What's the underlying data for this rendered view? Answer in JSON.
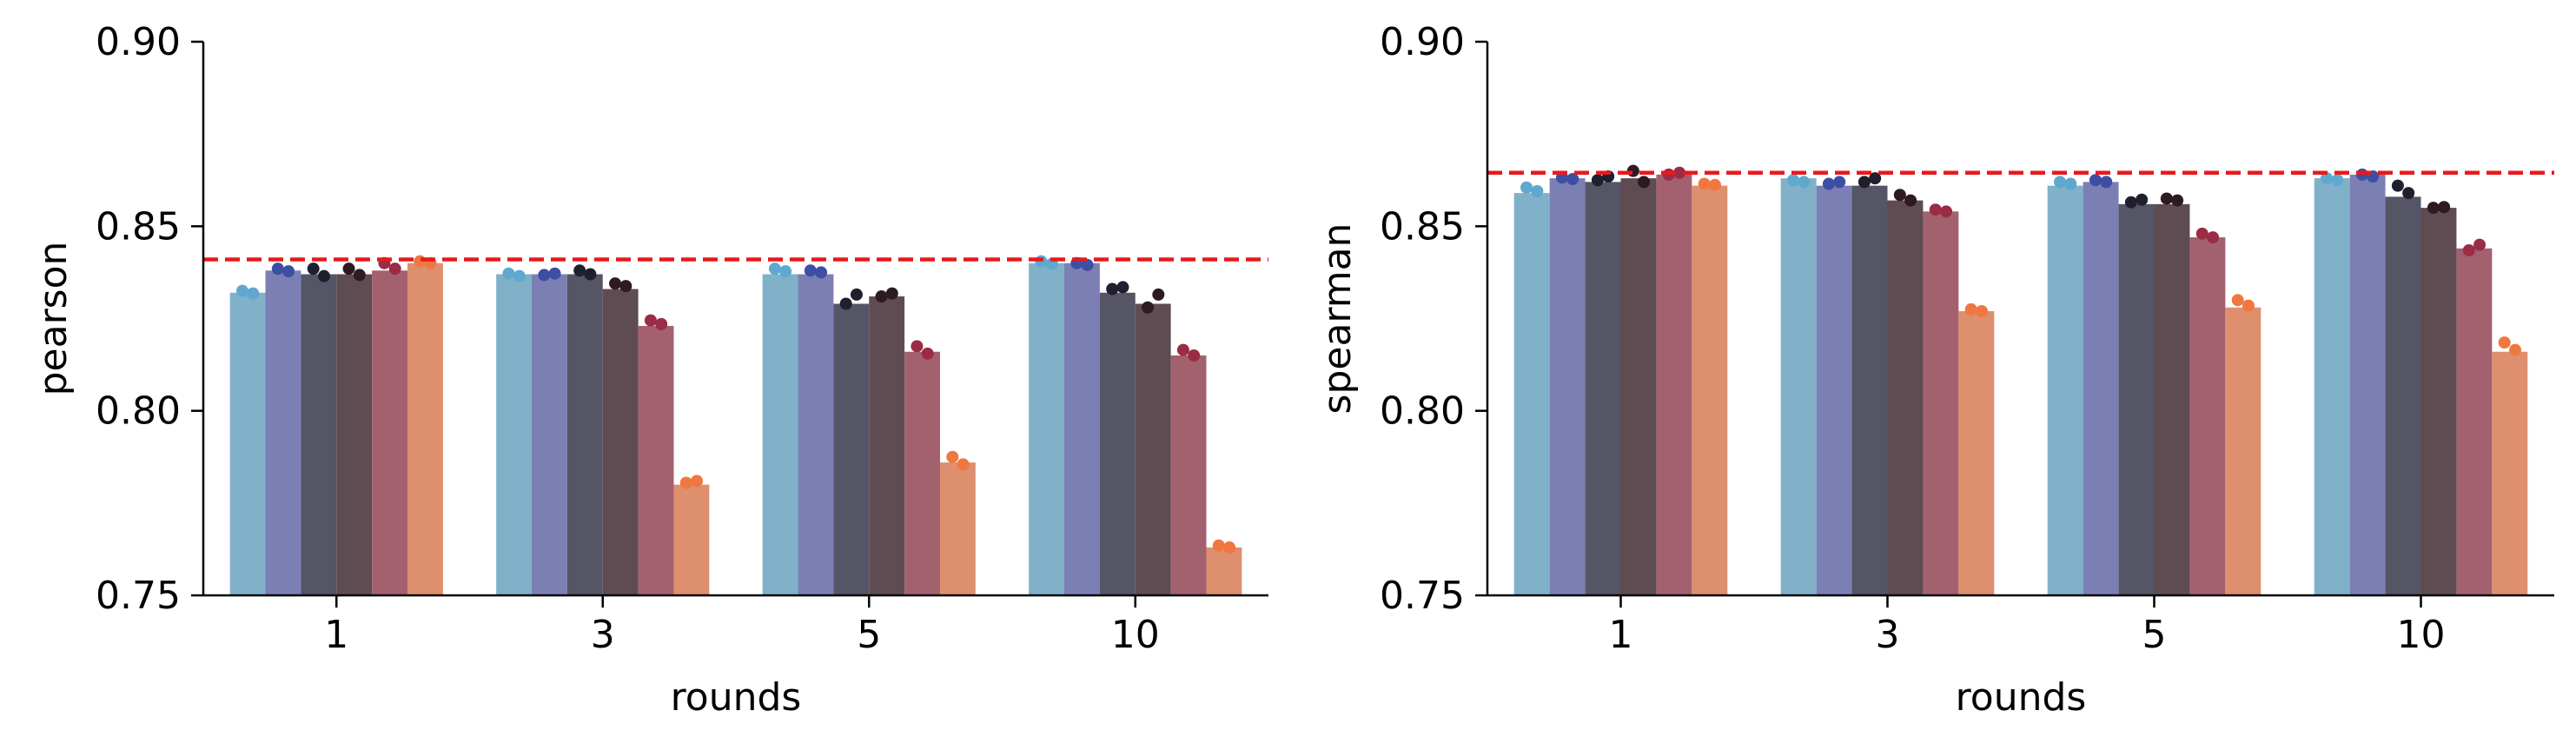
{
  "chart_data": [
    {
      "type": "bar",
      "xlabel": "rounds",
      "ylabel": "pearson",
      "ylim": [
        0.75,
        0.9
      ],
      "yticks": [
        "0.75",
        "0.80",
        "0.85",
        "0.90"
      ],
      "categories": [
        "1",
        "3",
        "5",
        "10"
      ],
      "reference_line": 0.841,
      "series": [
        {
          "values": [
            0.832,
            0.837,
            0.837,
            0.84
          ],
          "points": [
            [
              0.8325,
              0.8318
            ],
            [
              0.8372,
              0.8365
            ],
            [
              0.8385,
              0.8378
            ],
            [
              0.8405,
              0.8398
            ]
          ]
        },
        {
          "values": [
            0.838,
            0.837,
            0.837,
            0.84
          ],
          "points": [
            [
              0.8385,
              0.8378
            ],
            [
              0.8368,
              0.8372
            ],
            [
              0.838,
              0.8375
            ],
            [
              0.84,
              0.8395
            ]
          ]
        },
        {
          "values": [
            0.837,
            0.837,
            0.829,
            0.832
          ],
          "points": [
            [
              0.8385,
              0.8365
            ],
            [
              0.838,
              0.837
            ],
            [
              0.829,
              0.8315
            ],
            [
              0.833,
              0.8335
            ]
          ]
        },
        {
          "values": [
            0.837,
            0.833,
            0.831,
            0.829
          ],
          "points": [
            [
              0.8385,
              0.8368
            ],
            [
              0.8345,
              0.8338
            ],
            [
              0.831,
              0.8318
            ],
            [
              0.828,
              0.8315
            ]
          ]
        },
        {
          "values": [
            0.838,
            0.823,
            0.816,
            0.815
          ],
          "points": [
            [
              0.84,
              0.8385
            ],
            [
              0.8245,
              0.8235
            ],
            [
              0.8175,
              0.8155
            ],
            [
              0.8165,
              0.815
            ]
          ]
        },
        {
          "values": [
            0.84,
            0.78,
            0.786,
            0.763
          ],
          "points": [
            [
              0.8405,
              0.84
            ],
            [
              0.7805,
              0.781
            ],
            [
              0.7875,
              0.7855
            ],
            [
              0.7635,
              0.763
            ]
          ]
        }
      ]
    },
    {
      "type": "bar",
      "xlabel": "rounds",
      "ylabel": "spearman",
      "ylim": [
        0.75,
        0.9
      ],
      "yticks": [
        "0.75",
        "0.80",
        "0.85",
        "0.90"
      ],
      "categories": [
        "1",
        "3",
        "5",
        "10"
      ],
      "reference_line": 0.8645,
      "series": [
        {
          "values": [
            0.859,
            0.863,
            0.861,
            0.863
          ],
          "points": [
            [
              0.8605,
              0.8595
            ],
            [
              0.8625,
              0.862
            ],
            [
              0.862,
              0.8615
            ],
            [
              0.863,
              0.8625
            ]
          ]
        },
        {
          "values": [
            0.863,
            0.861,
            0.862,
            0.864
          ],
          "points": [
            [
              0.8632,
              0.8628
            ],
            [
              0.8615,
              0.862
            ],
            [
              0.8625,
              0.862
            ],
            [
              0.864,
              0.8635
            ]
          ]
        },
        {
          "values": [
            0.862,
            0.861,
            0.856,
            0.858
          ],
          "points": [
            [
              0.8625,
              0.8635
            ],
            [
              0.862,
              0.863
            ],
            [
              0.8565,
              0.8572
            ],
            [
              0.861,
              0.859
            ]
          ]
        },
        {
          "values": [
            0.863,
            0.857,
            0.856,
            0.855
          ],
          "points": [
            [
              0.865,
              0.862
            ],
            [
              0.8585,
              0.857
            ],
            [
              0.8575,
              0.857
            ],
            [
              0.855,
              0.8552
            ]
          ]
        },
        {
          "values": [
            0.864,
            0.854,
            0.847,
            0.844
          ],
          "points": [
            [
              0.864,
              0.8645
            ],
            [
              0.8545,
              0.854
            ],
            [
              0.848,
              0.847
            ],
            [
              0.8435,
              0.845
            ]
          ]
        },
        {
          "values": [
            0.861,
            0.827,
            0.828,
            0.816
          ],
          "points": [
            [
              0.8615,
              0.8612
            ],
            [
              0.8275,
              0.827
            ],
            [
              0.83,
              0.8285
            ],
            [
              0.8185,
              0.8165
            ]
          ]
        }
      ]
    }
  ],
  "colors": {
    "bars": [
      "#80b1c9",
      "#7b7fb4",
      "#555566",
      "#5e4c52",
      "#a36170",
      "#de8f6e"
    ],
    "dots": [
      "#5fa8cf",
      "#3d4fa3",
      "#1f1f2e",
      "#2e1a22",
      "#9a2c45",
      "#ef7840"
    ],
    "reference_line": "#e8191c",
    "axis": "#000000"
  }
}
